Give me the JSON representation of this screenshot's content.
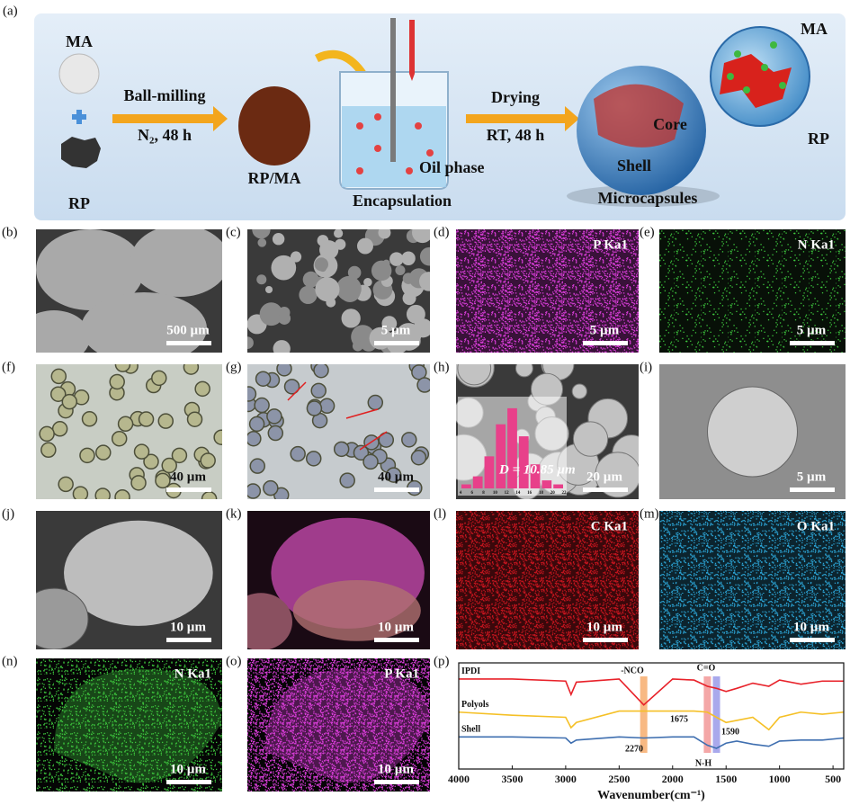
{
  "scheme": {
    "panel_label": "(a)",
    "ma": "MA",
    "rp": "RP",
    "step1": "Ball-milling",
    "step1_cond": "N₂, 48 h",
    "product1": "RP/MA",
    "oil_phase": "Oil phase",
    "step2": "Encapsulation",
    "step3": "Drying",
    "step3_cond": "RT, 48 h",
    "core": "Core",
    "shell": "Shell",
    "product2": "Microcapsules",
    "zoom_ma": "MA",
    "zoom_rp": "RP"
  },
  "micrographs": [
    {
      "label": "(b)",
      "scale_bar": "500 µm"
    },
    {
      "label": "(c)",
      "scale_bar": "5 µm"
    },
    {
      "label": "(d)",
      "element": "P Ka1",
      "scale_bar": "5 µm"
    },
    {
      "label": "(e)",
      "element": "N Ka1",
      "scale_bar": "5 µm"
    },
    {
      "label": "(f)",
      "scale_bar": "40 µm"
    },
    {
      "label": "(g)",
      "scale_bar": "40 µm"
    },
    {
      "label": "(h)",
      "scale_bar": "20 µm",
      "annotation": "D = 10.85 µm",
      "histogram": {
        "bins": [
          4,
          6,
          8,
          10,
          12,
          14,
          16,
          18,
          20,
          22
        ],
        "counts": [
          1,
          3,
          8,
          16,
          20,
          13,
          6,
          2,
          1
        ],
        "ylim": [
          0,
          22
        ]
      }
    },
    {
      "label": "(i)",
      "scale_bar": "5 µm"
    },
    {
      "label": "(j)",
      "scale_bar": "10 µm"
    },
    {
      "label": "(k)",
      "scale_bar": "10 µm"
    },
    {
      "label": "(l)",
      "element": "C Ka1",
      "scale_bar": "10 µm"
    },
    {
      "label": "(m)",
      "element": "O Ka1",
      "scale_bar": "10 µm"
    },
    {
      "label": "(n)",
      "element": "N Ka1",
      "scale_bar": "10 µm"
    },
    {
      "label": "(o)",
      "element": "P Ka1",
      "scale_bar": "10 µm"
    }
  ],
  "chart_data": {
    "type": "line",
    "panel_label": "(p)",
    "xlabel": "Wavenumber(cm⁻¹)",
    "x": [
      4000,
      3500,
      3000,
      2950,
      2900,
      2500,
      2270,
      2000,
      1800,
      1675,
      1590,
      1500,
      1400,
      1250,
      1100,
      1000,
      800,
      600,
      400
    ],
    "series": [
      {
        "name": "IPDI",
        "color": "#e8222a",
        "values": [
          0.87,
          0.87,
          0.85,
          0.72,
          0.84,
          0.87,
          0.62,
          0.87,
          0.86,
          0.8,
          0.78,
          0.75,
          0.78,
          0.83,
          0.8,
          0.86,
          0.82,
          0.85,
          0.85
        ]
      },
      {
        "name": "Polyols",
        "color": "#f5c026",
        "values": [
          0.55,
          0.52,
          0.5,
          0.4,
          0.45,
          0.56,
          0.56,
          0.56,
          0.56,
          0.55,
          0.5,
          0.45,
          0.47,
          0.5,
          0.38,
          0.5,
          0.55,
          0.53,
          0.55
        ]
      },
      {
        "name": "Shell",
        "color": "#3f6fb0",
        "values": [
          0.31,
          0.31,
          0.3,
          0.25,
          0.28,
          0.31,
          0.3,
          0.31,
          0.31,
          0.23,
          0.2,
          0.25,
          0.27,
          0.24,
          0.22,
          0.27,
          0.28,
          0.28,
          0.3
        ]
      }
    ],
    "bands": [
      {
        "x": 2270,
        "color": "#f5a25a"
      },
      {
        "x": 1675,
        "color": "#f08a8a"
      },
      {
        "x": 1590,
        "color": "#8c8ce6"
      }
    ],
    "annotations": [
      "-NCO",
      "C=O",
      "1675",
      "1590",
      "2270",
      "N-H"
    ],
    "xlim": [
      4000,
      400
    ],
    "xticks": [
      4000,
      3500,
      3000,
      2500,
      2000,
      1500,
      1000,
      500
    ],
    "ylim": [
      0,
      1
    ]
  }
}
